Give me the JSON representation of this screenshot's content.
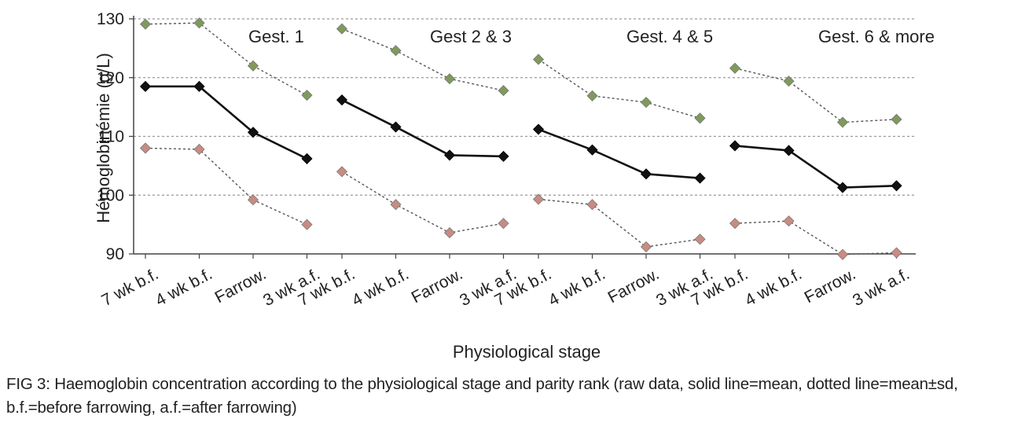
{
  "chart_data": {
    "type": "line",
    "ylabel": "Hémoglobinémie (g/L)",
    "xlabel": "Physiological stage",
    "ylim": [
      90,
      130
    ],
    "yticks": [
      "90",
      "100",
      "110",
      "120",
      "130"
    ],
    "grid": "horizontal-dotted",
    "groups": [
      {
        "title": "Gest. 1",
        "categories": [
          "7 wk b.f.",
          "4 wk b.f.",
          "Farrow.",
          "3 wk a.f."
        ],
        "mean": [
          118.5,
          118.5,
          110.7,
          106.2
        ],
        "upper": [
          129.1,
          129.3,
          122.0,
          117.0
        ],
        "lower": [
          108.0,
          107.8,
          99.2,
          95.0
        ]
      },
      {
        "title": "Gest 2 & 3",
        "categories": [
          "7 wk b.f.",
          "4 wk b.f.",
          "Farrow.",
          "3 wk a.f."
        ],
        "mean": [
          116.2,
          111.6,
          106.8,
          106.6
        ],
        "upper": [
          128.3,
          124.6,
          119.8,
          117.8
        ],
        "lower": [
          104.0,
          98.4,
          93.6,
          95.2
        ]
      },
      {
        "title": "Gest. 4 & 5",
        "categories": [
          "7 wk b.f.",
          "4 wk b.f.",
          "Farrow.",
          "3 wk a.f."
        ],
        "mean": [
          111.2,
          107.7,
          103.6,
          102.9
        ],
        "upper": [
          123.1,
          116.9,
          115.8,
          113.1
        ],
        "lower": [
          99.3,
          98.4,
          91.2,
          92.5
        ]
      },
      {
        "title": "Gest. 6 & more",
        "categories": [
          "7 wk b.f.",
          "4 wk b.f.",
          "Farrow.",
          "3 wk a.f."
        ],
        "mean": [
          108.4,
          107.6,
          101.3,
          101.6
        ],
        "upper": [
          121.6,
          119.4,
          112.4,
          112.9
        ],
        "lower": [
          95.2,
          95.6,
          89.9,
          90.2
        ]
      }
    ],
    "colors": {
      "mean": "#111111",
      "upper": "#7f9a5a",
      "lower": "#c98b82",
      "dotted_line": "#555555"
    }
  },
  "caption": "FIG 3: Haemoglobin concentration according to the physiological stage and parity rank (raw data, solid line=mean, dotted line=mean±sd, b.f.=before farrowing, a.f.=after farrowing)"
}
